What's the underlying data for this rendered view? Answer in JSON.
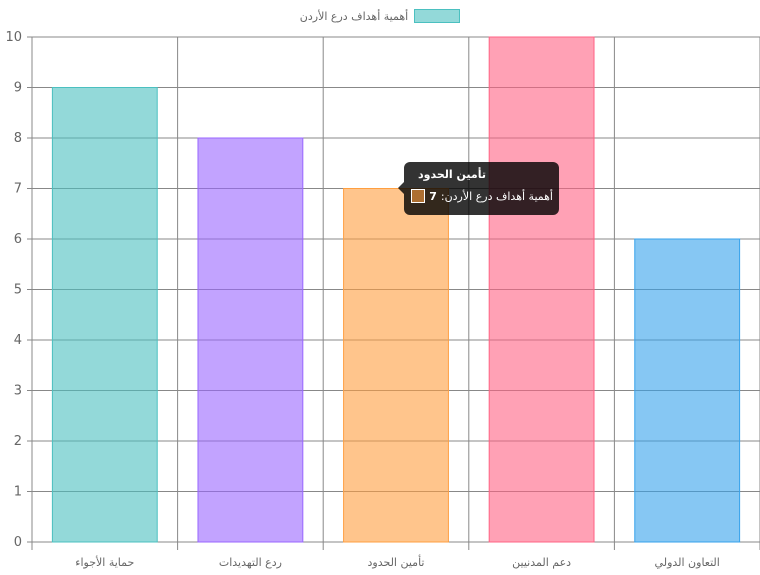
{
  "chart_data": {
    "type": "bar",
    "categories": [
      "حماية الأجواء",
      "ردع التهديدات",
      "تأمين الحدود",
      "دعم المدنيين",
      "التعاون الدولي"
    ],
    "series": [
      {
        "name": "أهمية أهداف درع الأردن",
        "values": [
          9,
          8,
          7,
          10,
          6
        ]
      }
    ],
    "colors": [
      "#4bc0c0",
      "#9966ff",
      "#ff9f40",
      "#ff6384",
      "#36a2eb"
    ],
    "ylim": [
      0,
      10
    ],
    "yticks": [
      "0",
      "1",
      "2",
      "3",
      "4",
      "5",
      "6",
      "7",
      "8",
      "9",
      "10"
    ],
    "grid": true,
    "legend_position": "top",
    "tooltip": {
      "title": "تأمين الحدود",
      "label": "أهمية أهداف درع الأردن:",
      "value": "7"
    }
  }
}
